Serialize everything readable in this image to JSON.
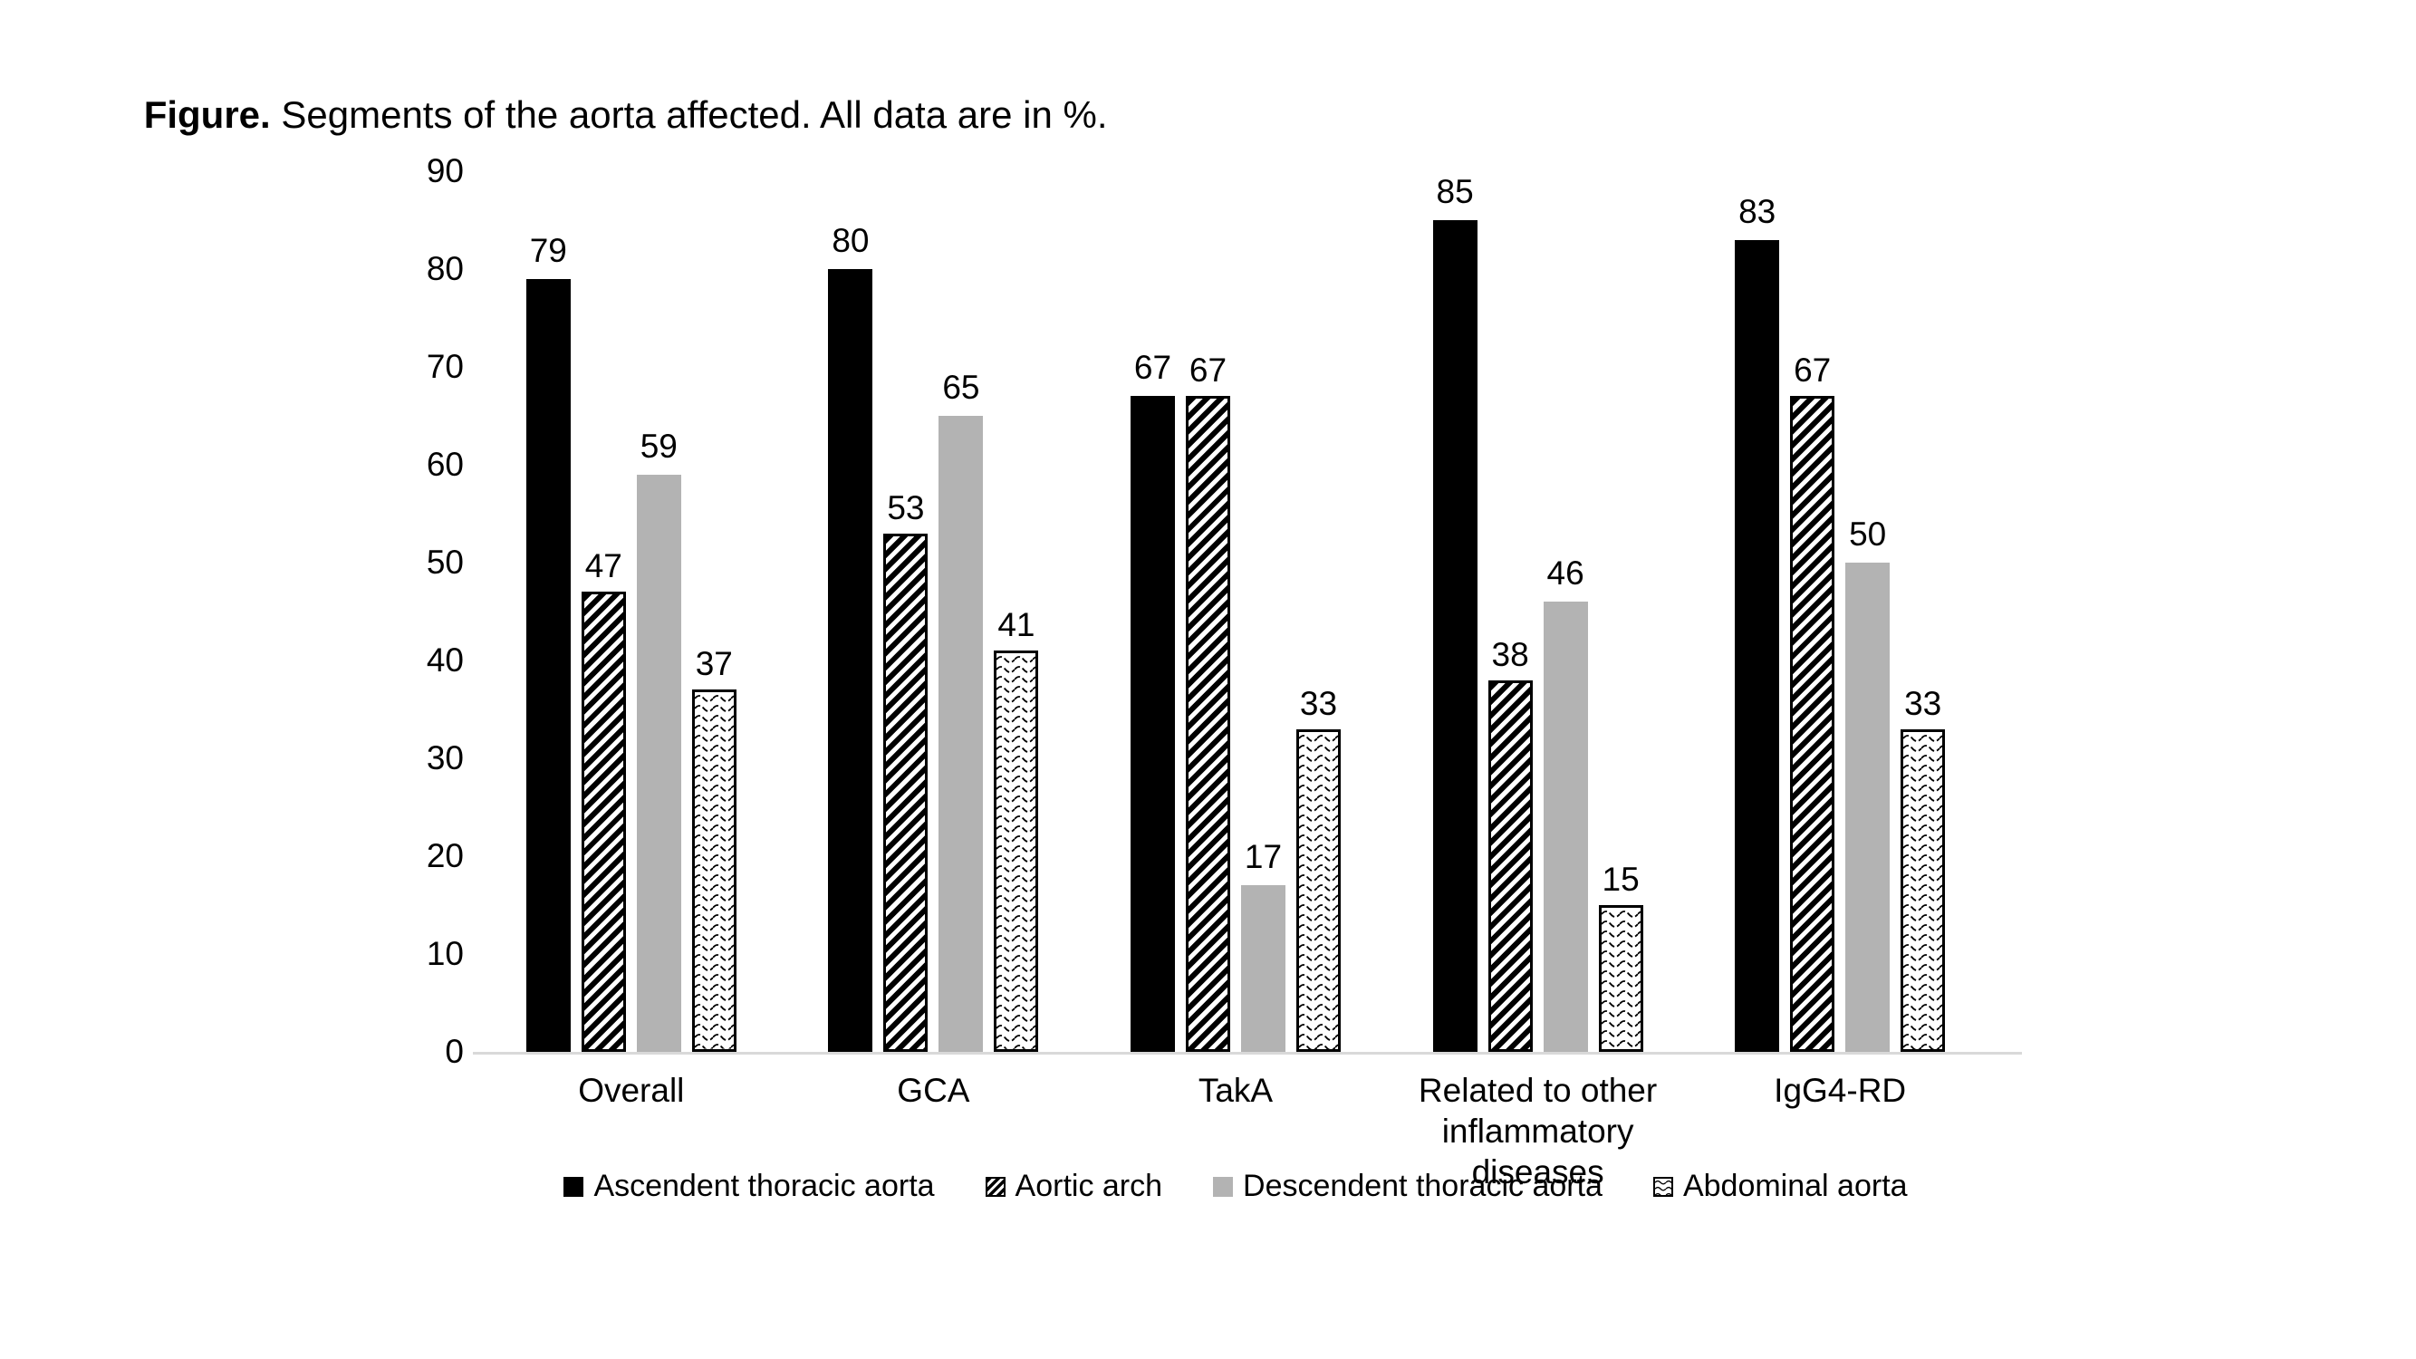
{
  "caption": {
    "bold": "Figure.",
    "text": " Segments of the aorta affected. All data are in %."
  },
  "colors": {
    "black": "#000000",
    "gray": "#b3b3b3",
    "axis_line": "#d9d9d9",
    "text": "#000000",
    "pattern_ink": "#000000",
    "pattern_bg": "#ffffff"
  },
  "chart_data": {
    "type": "bar",
    "title": "Figure. Segments of the aorta affected. All data are in %.",
    "unit": "%",
    "categories": [
      "Overall",
      "GCA",
      "TakA",
      "Related to other inflammatory diseases",
      "IgG4-RD"
    ],
    "series": [
      {
        "name": "Ascendent thoracic aorta",
        "pattern": "solid-black",
        "values": [
          79,
          80,
          67,
          85,
          83
        ]
      },
      {
        "name": "Aortic arch",
        "pattern": "diagonal-hatch",
        "values": [
          47,
          53,
          67,
          38,
          67
        ]
      },
      {
        "name": "Descendent thoracic aorta",
        "pattern": "solid-gray",
        "values": [
          59,
          65,
          17,
          46,
          50
        ]
      },
      {
        "name": "Abdominal aorta",
        "pattern": "wavy",
        "values": [
          37,
          41,
          33,
          15,
          33
        ]
      }
    ],
    "ylim": [
      0,
      90
    ],
    "yticks": [
      0,
      10,
      20,
      30,
      40,
      50,
      60,
      70,
      80,
      90
    ],
    "grid": false,
    "data_labels": true,
    "legend_position": "bottom",
    "xlabel": "",
    "ylabel": ""
  }
}
